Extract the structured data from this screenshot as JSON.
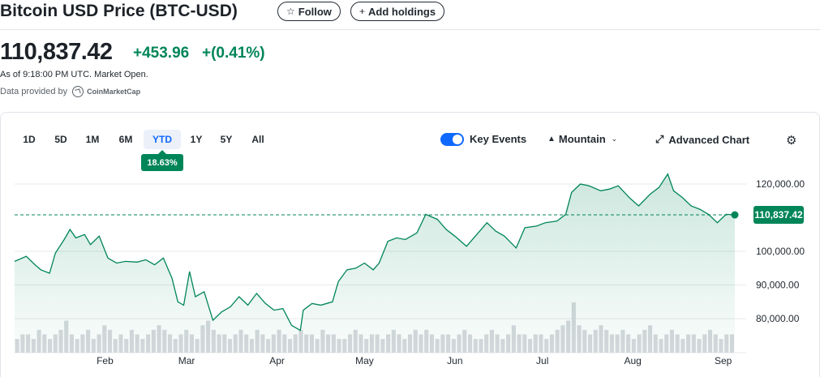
{
  "header": {
    "title": "Bitcoin USD Price (BTC-USD)",
    "follow_label": "Follow",
    "add_holdings_label": "Add holdings"
  },
  "quote": {
    "price": "110,837.42",
    "change": "+453.96",
    "change_pct": "+(0.41%)",
    "as_of": "As of 9:18:00 PM UTC. Market Open.",
    "provided_by": "Data provided by",
    "provider": "CoinMarketCap"
  },
  "controls": {
    "ranges": [
      "1D",
      "5D",
      "1M",
      "6M",
      "YTD",
      "1Y",
      "5Y",
      "All"
    ],
    "active_range": "YTD",
    "ytd_return": "18.63%",
    "key_events_label": "Key Events",
    "key_events_on": true,
    "chart_style_label": "Mountain",
    "advanced_chart_label": "Advanced Chart"
  },
  "colors": {
    "line": "#008558",
    "positive": "#008558",
    "accent": "#0f69ff",
    "volume": "#d6d9dd"
  },
  "chart_data": {
    "type": "area",
    "months": [
      "Feb",
      "Mar",
      "Apr",
      "May",
      "Jun",
      "Jul",
      "Aug",
      "Sep"
    ],
    "y_ticks": [
      "120,000.00",
      "100,000.00",
      "90,000.00",
      "80,000.00"
    ],
    "ylim": [
      75000,
      124000
    ],
    "last_value": 110837.42,
    "last_label": "110,837.42",
    "grid": true,
    "points": [
      [
        "2025-01-01",
        97000
      ],
      [
        "2025-01-05",
        98500
      ],
      [
        "2025-01-08",
        96000
      ],
      [
        "2025-01-10",
        94500
      ],
      [
        "2025-01-13",
        93500
      ],
      [
        "2025-01-15",
        99500
      ],
      [
        "2025-01-18",
        103500
      ],
      [
        "2025-01-20",
        106500
      ],
      [
        "2025-01-22",
        104000
      ],
      [
        "2025-01-25",
        105000
      ],
      [
        "2025-01-27",
        102000
      ],
      [
        "2025-01-30",
        104500
      ],
      [
        "2025-02-02",
        98000
      ],
      [
        "2025-02-05",
        96500
      ],
      [
        "2025-02-08",
        97000
      ],
      [
        "2025-02-12",
        96800
      ],
      [
        "2025-02-15",
        97500
      ],
      [
        "2025-02-18",
        96000
      ],
      [
        "2025-02-21",
        98000
      ],
      [
        "2025-02-24",
        92000
      ],
      [
        "2025-02-26",
        85000
      ],
      [
        "2025-02-28",
        84000
      ],
      [
        "2025-03-02",
        94000
      ],
      [
        "2025-03-04",
        86500
      ],
      [
        "2025-03-07",
        88000
      ],
      [
        "2025-03-10",
        79500
      ],
      [
        "2025-03-13",
        82000
      ],
      [
        "2025-03-16",
        83500
      ],
      [
        "2025-03-19",
        86500
      ],
      [
        "2025-03-22",
        84000
      ],
      [
        "2025-03-25",
        87500
      ],
      [
        "2025-03-28",
        84500
      ],
      [
        "2025-03-31",
        82500
      ],
      [
        "2025-04-03",
        83000
      ],
      [
        "2025-04-06",
        78000
      ],
      [
        "2025-04-09",
        76500
      ],
      [
        "2025-04-10",
        82500
      ],
      [
        "2025-04-13",
        84500
      ],
      [
        "2025-04-16",
        84000
      ],
      [
        "2025-04-20",
        85000
      ],
      [
        "2025-04-22",
        91000
      ],
      [
        "2025-04-25",
        94500
      ],
      [
        "2025-04-28",
        95000
      ],
      [
        "2025-05-01",
        96500
      ],
      [
        "2025-05-04",
        94500
      ],
      [
        "2025-05-06",
        96500
      ],
      [
        "2025-05-09",
        103000
      ],
      [
        "2025-05-12",
        104000
      ],
      [
        "2025-05-15",
        103500
      ],
      [
        "2025-05-19",
        105500
      ],
      [
        "2025-05-22",
        111000
      ],
      [
        "2025-05-26",
        109500
      ],
      [
        "2025-05-29",
        106500
      ],
      [
        "2025-06-01",
        104500
      ],
      [
        "2025-06-05",
        101500
      ],
      [
        "2025-06-09",
        105500
      ],
      [
        "2025-06-12",
        108500
      ],
      [
        "2025-06-15",
        106000
      ],
      [
        "2025-06-18",
        104500
      ],
      [
        "2025-06-22",
        101000
      ],
      [
        "2025-06-25",
        107000
      ],
      [
        "2025-06-29",
        107500
      ],
      [
        "2025-07-02",
        108500
      ],
      [
        "2025-07-06",
        109000
      ],
      [
        "2025-07-09",
        111000
      ],
      [
        "2025-07-11",
        117500
      ],
      [
        "2025-07-14",
        120000
      ],
      [
        "2025-07-17",
        119500
      ],
      [
        "2025-07-21",
        118000
      ],
      [
        "2025-07-24",
        118500
      ],
      [
        "2025-07-27",
        119500
      ],
      [
        "2025-07-31",
        115800
      ],
      [
        "2025-08-03",
        113500
      ],
      [
        "2025-08-07",
        117000
      ],
      [
        "2025-08-10",
        119000
      ],
      [
        "2025-08-13",
        123000
      ],
      [
        "2025-08-15",
        118000
      ],
      [
        "2025-08-18",
        116000
      ],
      [
        "2025-08-21",
        113500
      ],
      [
        "2025-08-24",
        112500
      ],
      [
        "2025-08-27",
        111000
      ],
      [
        "2025-08-30",
        108500
      ],
      [
        "2025-09-02",
        111000
      ],
      [
        "2025-09-05",
        110837
      ]
    ],
    "volume": [
      3,
      4,
      4,
      3,
      5,
      4,
      3,
      4,
      5,
      7,
      4,
      3,
      4,
      5,
      3,
      4,
      6,
      5,
      3,
      4,
      3,
      5,
      4,
      3,
      4,
      5,
      6,
      5,
      4,
      3,
      4,
      5,
      4,
      3,
      6,
      7,
      5,
      4,
      4,
      3,
      4,
      5,
      4,
      3,
      5,
      4,
      3,
      4,
      5,
      4,
      3,
      4,
      5,
      4,
      4,
      3,
      5,
      4,
      4,
      3,
      3,
      4,
      5,
      4,
      3,
      4,
      4,
      3,
      4,
      5,
      4,
      3,
      4,
      5,
      4,
      5,
      4,
      3,
      4,
      4,
      3,
      4,
      5,
      4,
      3,
      3,
      4,
      5,
      4,
      3,
      4,
      6,
      4,
      4,
      3,
      4,
      4,
      3,
      4,
      5,
      6,
      7,
      11,
      6,
      5,
      4,
      5,
      6,
      5,
      4,
      4,
      5,
      4,
      3,
      4,
      5,
      6,
      4,
      3,
      4,
      5,
      4,
      3,
      4,
      4,
      3,
      4,
      5,
      4,
      3,
      4,
      4
    ]
  }
}
